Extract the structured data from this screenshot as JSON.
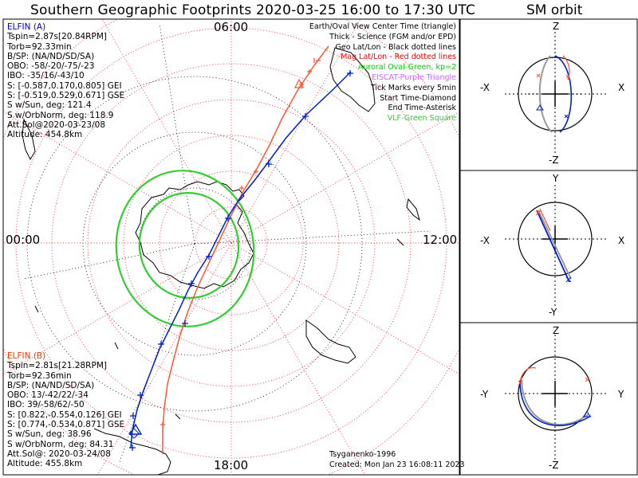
{
  "title": "Southern Geographic Footprints 2020-03-25 16:00 to 17:30 UTC",
  "sm_title": "SM orbit",
  "clock_labels": {
    "top": "06:00",
    "left": "00:00",
    "right": "12:00",
    "bottom": "18:00"
  },
  "probe_a": {
    "name": "ELFIN (A)",
    "color": "#0000cc",
    "lines": [
      "Tspin=2.87s[20.84RPM]",
      "Torb=92.33min",
      "B/SP: (NA/ND/SD/SA)",
      "OBO: -58/-20/-75/-23",
      "IBO: -35/16/-43/10",
      "S: [-0.587,0.170,0.805] GEI",
      "S: [-0.519,0.529,0.671] GSE",
      "S w/Sun, deg: 121.4",
      "S w/OrbNorm, deg: 118.9",
      "Att.Sol@2020-03-23/08",
      "Altitude: 454.8km"
    ]
  },
  "probe_b": {
    "name": "ELFIN (B)",
    "color": "#ff3300",
    "lines": [
      "Tspin=2.81s[21.28RPM]",
      "Torb=92.36min",
      "B/SP: (NA/ND/SD/SA)",
      "OBO: 13/-42/22/-34",
      "IBO: 39/-58/62/-50",
      "S: [0.822,-0.554,0.126] GEI",
      "S: [0.774,-0.534,0.871] GSE",
      "S w/Sun, deg: 38.96",
      "S w/OrbNorm, deg: 84.31",
      "Att.Sol@: 2020-03-24/08",
      "Altitude: 455.8km"
    ]
  },
  "legend": [
    {
      "text": "Earth/Oval View Center Time (triangle)",
      "color": "#000000"
    },
    {
      "text": "Thick - Science (FGM and/or EPD)",
      "color": "#000000"
    },
    {
      "text": "Geo Lat/Lon - Black dotted lines",
      "color": "#000000"
    },
    {
      "text": "Mag Lat/Lon - Red dotted lines",
      "color": "#ff0000"
    },
    {
      "text": "Auroral Oval-Green, kp=2",
      "color": "#00cc00"
    },
    {
      "text": "EISCAT-Purple Triangle",
      "color": "#cc66ff"
    },
    {
      "text": "Tick Marks every 5min",
      "color": "#000000"
    },
    {
      "text": "Start Time-Diamond",
      "color": "#000000"
    },
    {
      "text": "End Time-Asterisk",
      "color": "#000000"
    },
    {
      "text": "VLF-Green Square",
      "color": "#33cc33"
    }
  ],
  "footer": {
    "model": "Tsyganenko-1996",
    "created": "Created: Mon Jan 23 16:08:11 2023"
  },
  "sm_panels": [
    {
      "top": "Z",
      "bottom": "-Z",
      "left": "-X",
      "right": "X"
    },
    {
      "top": "Y",
      "bottom": "-Y",
      "left": "-X",
      "right": "X"
    },
    {
      "top": "Z",
      "bottom": "-Z",
      "left": "-Y",
      "right": "Y"
    }
  ],
  "colors": {
    "probe_a_track": "#0000cc",
    "probe_b_track": "#ff5533",
    "auroral_oval": "#33cc33",
    "mag_grid": "#ff0000",
    "geo_grid": "#000000"
  }
}
